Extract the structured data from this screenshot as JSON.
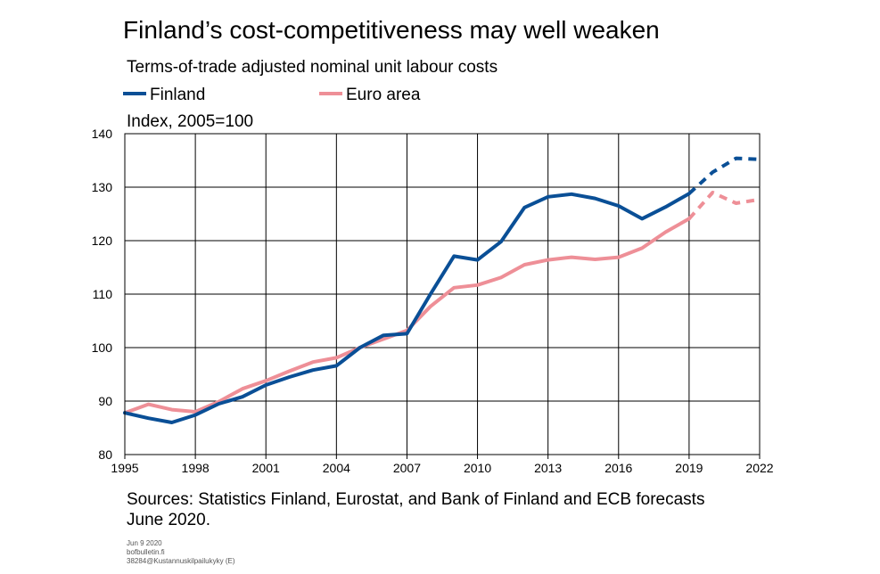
{
  "header": {
    "title": "Finland’s cost-competitiveness may well weaken",
    "subtitle": "Terms-of-trade adjusted nominal unit labour costs",
    "unit": "Index, 2005=100"
  },
  "footer": {
    "sources_line1": "Sources: Statistics Finland,  Eurostat, and Bank of Finland and ECB forecasts",
    "sources_line2": "June 2020.",
    "date": "Jun 9 2020",
    "site": "bofbulletin.fi",
    "code": "38284@Kustannuskilpailukyky (E)"
  },
  "chart_data": {
    "type": "line",
    "ylabel": "Index, 2005=100",
    "xlim": [
      1995,
      2022
    ],
    "ylim": [
      80,
      140
    ],
    "grid": true,
    "legend_position": "top-left",
    "x_ticks": [
      1995,
      1998,
      2001,
      2004,
      2007,
      2010,
      2013,
      2016,
      2019,
      2022
    ],
    "x_tick_labels": [
      "1995",
      "1998",
      "2001",
      "2004",
      "2007",
      "2010",
      "2013",
      "2016",
      "2019",
      "2022"
    ],
    "y_ticks": [
      80,
      90,
      100,
      110,
      120,
      130,
      140
    ],
    "y_tick_labels": [
      "80",
      "90",
      "100",
      "110",
      "120",
      "130",
      "140"
    ],
    "series": [
      {
        "name": "Finland",
        "color": "#0a4f96",
        "x": [
          1995,
          1996,
          1997,
          1998,
          1999,
          2000,
          2001,
          2002,
          2003,
          2004,
          2005,
          2006,
          2007,
          2008,
          2009,
          2010,
          2011,
          2012,
          2013,
          2014,
          2015,
          2016,
          2017,
          2018,
          2019,
          2020,
          2021,
          2022
        ],
        "values": [
          87.8,
          86.8,
          86.0,
          87.4,
          89.5,
          90.8,
          93.0,
          94.5,
          95.8,
          96.6,
          100.0,
          102.3,
          102.6,
          110.0,
          117.1,
          116.4,
          119.8,
          126.2,
          128.2,
          128.7,
          127.9,
          126.5,
          124.1,
          126.3,
          128.8,
          132.8,
          135.4,
          135.2
        ],
        "forecast_from": 2019
      },
      {
        "name": "Euro area",
        "color": "#ee8f97",
        "x": [
          1995,
          1996,
          1997,
          1998,
          1999,
          2000,
          2001,
          2002,
          2003,
          2004,
          2005,
          2006,
          2007,
          2008,
          2009,
          2010,
          2011,
          2012,
          2013,
          2014,
          2015,
          2016,
          2017,
          2018,
          2019,
          2020,
          2021,
          2022
        ],
        "values": [
          87.8,
          89.4,
          88.4,
          88.0,
          89.9,
          92.3,
          93.8,
          95.6,
          97.3,
          98.1,
          100.0,
          101.6,
          103.2,
          107.7,
          111.2,
          111.7,
          113.1,
          115.5,
          116.4,
          116.9,
          116.5,
          116.9,
          118.6,
          121.6,
          124.1,
          129.0,
          127.0,
          127.7
        ],
        "forecast_from": 2019
      }
    ]
  }
}
